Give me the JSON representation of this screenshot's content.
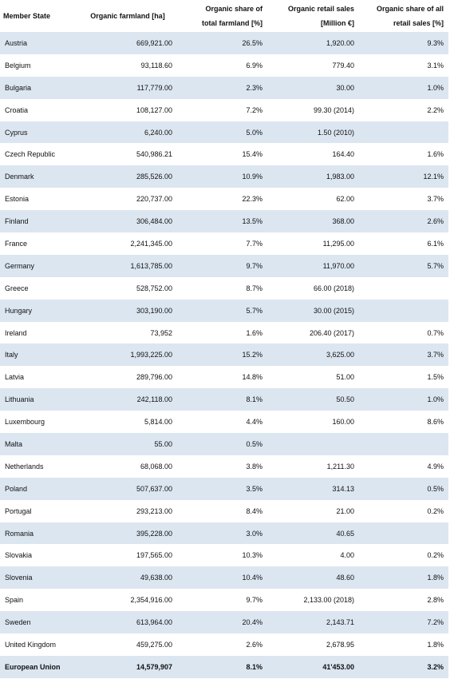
{
  "table": {
    "header": [
      "Member State",
      "Organic farmland [ha]",
      "Organic share of total farmland [%]",
      "Organic retail sales [Million €]",
      "Organic share of all retail sales [%]"
    ],
    "rows": [
      [
        "Austria",
        "669,921.00",
        "26.5%",
        "1,920.00",
        "9.3%"
      ],
      [
        "Belgium",
        "93,118.60",
        "6.9%",
        "779.40",
        "3.1%"
      ],
      [
        "Bulgaria",
        "117,779.00",
        "2.3%",
        "30.00",
        "1.0%"
      ],
      [
        "Croatia",
        "108,127.00",
        "7.2%",
        "99.30 (2014)",
        "2.2%"
      ],
      [
        "Cyprus",
        "6,240.00",
        "5.0%",
        "1.50 (2010)",
        null
      ],
      [
        "Czech Republic",
        "540,986.21",
        "15.4%",
        "164.40",
        "1.6%"
      ],
      [
        "Denmark",
        "285,526.00",
        "10.9%",
        "1,983.00",
        "12.1%"
      ],
      [
        "Estonia",
        "220,737.00",
        "22.3%",
        "62.00",
        "3.7%"
      ],
      [
        "Finland",
        "306,484.00",
        "13.5%",
        "368.00",
        "2.6%"
      ],
      [
        "France",
        "2,241,345.00",
        "7.7%",
        "11,295.00",
        "6.1%"
      ],
      [
        "Germany",
        "1,613,785.00",
        "9.7%",
        "11,970.00",
        "5.7%"
      ],
      [
        "Greece",
        "528,752.00",
        "8.7%",
        "66.00 (2018)",
        null
      ],
      [
        "Hungary",
        "303,190.00",
        "5.7%",
        "30.00 (2015)",
        null
      ],
      [
        "Ireland",
        "73,952",
        "1.6%",
        "206.40 (2017)",
        "0.7%"
      ],
      [
        "Italy",
        "1,993,225.00",
        "15.2%",
        "3,625.00",
        "3.7%"
      ],
      [
        "Latvia",
        "289,796.00",
        "14.8%",
        "51.00",
        "1.5%"
      ],
      [
        "Lithuania",
        "242,118.00",
        "8.1%",
        "50.50",
        "1.0%"
      ],
      [
        "Luxembourg",
        "5,814.00",
        "4.4%",
        "160.00",
        "8.6%"
      ],
      [
        "Malta",
        "55.00",
        "0.5%",
        null,
        null
      ],
      [
        "Netherlands",
        "68,068.00",
        "3.8%",
        "1,211.30",
        "4.9%"
      ],
      [
        "Poland",
        "507,637.00",
        "3.5%",
        "314.13",
        "0.5%"
      ],
      [
        "Portugal",
        "293,213.00",
        "8.4%",
        "21.00",
        "0.2%"
      ],
      [
        "Romania",
        "395,228.00",
        "3.0%",
        "40.65",
        null
      ],
      [
        "Slovakia",
        "197,565.00",
        "10.3%",
        "4.00",
        "0.2%"
      ],
      [
        "Slovenia",
        "49,638.00",
        "10.4%",
        "48.60",
        "1.8%"
      ],
      [
        "Spain",
        "2,354,916.00",
        "9.7%",
        "2,133.00 (2018)",
        "2.8%"
      ],
      [
        "Sweden",
        "613,964.00",
        "20.4%",
        "2,143.71",
        "7.2%"
      ],
      [
        "United Kingdom",
        "459,275.00",
        "2.6%",
        "2,678.95",
        "1.8%"
      ],
      [
        "European Union",
        "14,579,907",
        "8.1%",
        "41'453.00",
        "3.2%"
      ]
    ]
  }
}
